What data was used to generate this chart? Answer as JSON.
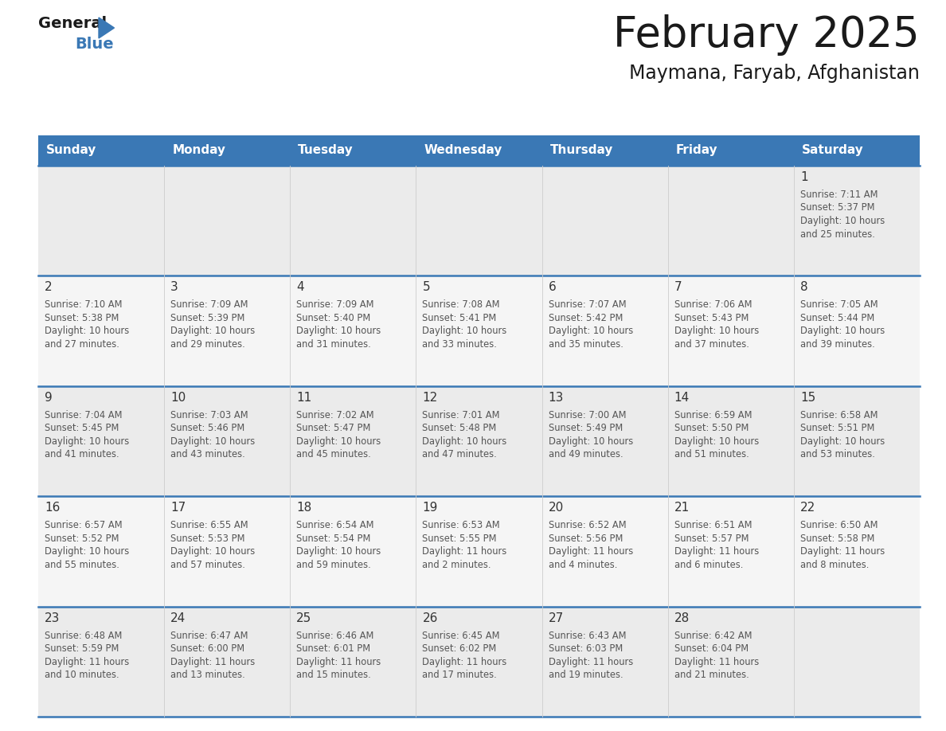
{
  "title": "February 2025",
  "subtitle": "Maymana, Faryab, Afghanistan",
  "days_of_week": [
    "Sunday",
    "Monday",
    "Tuesday",
    "Wednesday",
    "Thursday",
    "Friday",
    "Saturday"
  ],
  "header_bg_color": "#3a78b5",
  "header_text_color": "#ffffff",
  "cell_bg_row0": "#ebebeb",
  "cell_bg_row1": "#f5f5f5",
  "cell_bg_row2": "#ebebeb",
  "cell_bg_row3": "#f5f5f5",
  "cell_bg_row4": "#ebebeb",
  "row_line_color": "#3a78b5",
  "day_num_color": "#333333",
  "info_text_color": "#555555",
  "title_color": "#1a1a1a",
  "subtitle_color": "#1a1a1a",
  "logo_general_color": "#1a1a1a",
  "logo_blue_color": "#3a78b5",
  "calendar_data": [
    {
      "day": 1,
      "col": 6,
      "row": 0,
      "sunrise": "7:11 AM",
      "sunset": "5:37 PM",
      "daylight_hours": 10,
      "daylight_minutes": 25
    },
    {
      "day": 2,
      "col": 0,
      "row": 1,
      "sunrise": "7:10 AM",
      "sunset": "5:38 PM",
      "daylight_hours": 10,
      "daylight_minutes": 27
    },
    {
      "day": 3,
      "col": 1,
      "row": 1,
      "sunrise": "7:09 AM",
      "sunset": "5:39 PM",
      "daylight_hours": 10,
      "daylight_minutes": 29
    },
    {
      "day": 4,
      "col": 2,
      "row": 1,
      "sunrise": "7:09 AM",
      "sunset": "5:40 PM",
      "daylight_hours": 10,
      "daylight_minutes": 31
    },
    {
      "day": 5,
      "col": 3,
      "row": 1,
      "sunrise": "7:08 AM",
      "sunset": "5:41 PM",
      "daylight_hours": 10,
      "daylight_minutes": 33
    },
    {
      "day": 6,
      "col": 4,
      "row": 1,
      "sunrise": "7:07 AM",
      "sunset": "5:42 PM",
      "daylight_hours": 10,
      "daylight_minutes": 35
    },
    {
      "day": 7,
      "col": 5,
      "row": 1,
      "sunrise": "7:06 AM",
      "sunset": "5:43 PM",
      "daylight_hours": 10,
      "daylight_minutes": 37
    },
    {
      "day": 8,
      "col": 6,
      "row": 1,
      "sunrise": "7:05 AM",
      "sunset": "5:44 PM",
      "daylight_hours": 10,
      "daylight_minutes": 39
    },
    {
      "day": 9,
      "col": 0,
      "row": 2,
      "sunrise": "7:04 AM",
      "sunset": "5:45 PM",
      "daylight_hours": 10,
      "daylight_minutes": 41
    },
    {
      "day": 10,
      "col": 1,
      "row": 2,
      "sunrise": "7:03 AM",
      "sunset": "5:46 PM",
      "daylight_hours": 10,
      "daylight_minutes": 43
    },
    {
      "day": 11,
      "col": 2,
      "row": 2,
      "sunrise": "7:02 AM",
      "sunset": "5:47 PM",
      "daylight_hours": 10,
      "daylight_minutes": 45
    },
    {
      "day": 12,
      "col": 3,
      "row": 2,
      "sunrise": "7:01 AM",
      "sunset": "5:48 PM",
      "daylight_hours": 10,
      "daylight_minutes": 47
    },
    {
      "day": 13,
      "col": 4,
      "row": 2,
      "sunrise": "7:00 AM",
      "sunset": "5:49 PM",
      "daylight_hours": 10,
      "daylight_minutes": 49
    },
    {
      "day": 14,
      "col": 5,
      "row": 2,
      "sunrise": "6:59 AM",
      "sunset": "5:50 PM",
      "daylight_hours": 10,
      "daylight_minutes": 51
    },
    {
      "day": 15,
      "col": 6,
      "row": 2,
      "sunrise": "6:58 AM",
      "sunset": "5:51 PM",
      "daylight_hours": 10,
      "daylight_minutes": 53
    },
    {
      "day": 16,
      "col": 0,
      "row": 3,
      "sunrise": "6:57 AM",
      "sunset": "5:52 PM",
      "daylight_hours": 10,
      "daylight_minutes": 55
    },
    {
      "day": 17,
      "col": 1,
      "row": 3,
      "sunrise": "6:55 AM",
      "sunset": "5:53 PM",
      "daylight_hours": 10,
      "daylight_minutes": 57
    },
    {
      "day": 18,
      "col": 2,
      "row": 3,
      "sunrise": "6:54 AM",
      "sunset": "5:54 PM",
      "daylight_hours": 10,
      "daylight_minutes": 59
    },
    {
      "day": 19,
      "col": 3,
      "row": 3,
      "sunrise": "6:53 AM",
      "sunset": "5:55 PM",
      "daylight_hours": 11,
      "daylight_minutes": 2
    },
    {
      "day": 20,
      "col": 4,
      "row": 3,
      "sunrise": "6:52 AM",
      "sunset": "5:56 PM",
      "daylight_hours": 11,
      "daylight_minutes": 4
    },
    {
      "day": 21,
      "col": 5,
      "row": 3,
      "sunrise": "6:51 AM",
      "sunset": "5:57 PM",
      "daylight_hours": 11,
      "daylight_minutes": 6
    },
    {
      "day": 22,
      "col": 6,
      "row": 3,
      "sunrise": "6:50 AM",
      "sunset": "5:58 PM",
      "daylight_hours": 11,
      "daylight_minutes": 8
    },
    {
      "day": 23,
      "col": 0,
      "row": 4,
      "sunrise": "6:48 AM",
      "sunset": "5:59 PM",
      "daylight_hours": 11,
      "daylight_minutes": 10
    },
    {
      "day": 24,
      "col": 1,
      "row": 4,
      "sunrise": "6:47 AM",
      "sunset": "6:00 PM",
      "daylight_hours": 11,
      "daylight_minutes": 13
    },
    {
      "day": 25,
      "col": 2,
      "row": 4,
      "sunrise": "6:46 AM",
      "sunset": "6:01 PM",
      "daylight_hours": 11,
      "daylight_minutes": 15
    },
    {
      "day": 26,
      "col": 3,
      "row": 4,
      "sunrise": "6:45 AM",
      "sunset": "6:02 PM",
      "daylight_hours": 11,
      "daylight_minutes": 17
    },
    {
      "day": 27,
      "col": 4,
      "row": 4,
      "sunrise": "6:43 AM",
      "sunset": "6:03 PM",
      "daylight_hours": 11,
      "daylight_minutes": 19
    },
    {
      "day": 28,
      "col": 5,
      "row": 4,
      "sunrise": "6:42 AM",
      "sunset": "6:04 PM",
      "daylight_hours": 11,
      "daylight_minutes": 21
    }
  ]
}
